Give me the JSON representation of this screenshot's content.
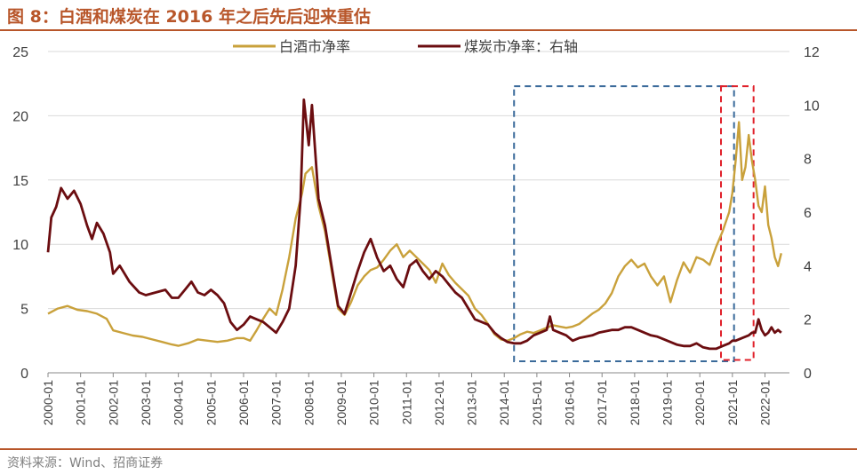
{
  "title": "图 8：白酒和煤炭在 2016 年之后先后迎来重估",
  "source": "资料来源：Wind、招商证券",
  "colors": {
    "baijiu": "#c9a13b",
    "coal": "#6b0d10",
    "blue_box": "#3a6a9a",
    "red_box": "#e0202a",
    "grid": "#d9d9d9",
    "accent": "#b8562a"
  },
  "chart_data": {
    "type": "line",
    "title": "",
    "legend_position": "top-center",
    "grid": true,
    "x_ticks": [
      "2000-01",
      "2001-01",
      "2002-01",
      "2003-01",
      "2004-01",
      "2005-01",
      "2006-01",
      "2007-01",
      "2008-01",
      "2009-01",
      "2010-01",
      "2011-01",
      "2012-01",
      "2013-01",
      "2014-01",
      "2015-01",
      "2016-01",
      "2017-01",
      "2018-01",
      "2019-01",
      "2020-01",
      "2021-01",
      "2022-01"
    ],
    "x_range": [
      2000.0,
      2022.75
    ],
    "y_left": {
      "min": 0,
      "max": 25,
      "ticks": [
        0,
        5,
        10,
        15,
        20,
        25
      ]
    },
    "y_right": {
      "min": 0,
      "max": 12,
      "ticks": [
        0,
        2,
        4,
        6,
        8,
        10,
        12
      ]
    },
    "series": [
      {
        "name": "白酒市净率",
        "axis": "left",
        "color": "#c9a13b",
        "x": [
          2000.0,
          2000.3,
          2000.6,
          2000.9,
          2001.2,
          2001.5,
          2001.8,
          2002.0,
          2002.3,
          2002.6,
          2002.9,
          2003.2,
          2003.5,
          2003.8,
          2004.0,
          2004.3,
          2004.6,
          2004.9,
          2005.2,
          2005.5,
          2005.8,
          2006.0,
          2006.2,
          2006.4,
          2006.6,
          2006.8,
          2007.0,
          2007.2,
          2007.4,
          2007.6,
          2007.8,
          2007.9,
          2008.1,
          2008.3,
          2008.5,
          2008.7,
          2008.9,
          2009.1,
          2009.3,
          2009.5,
          2009.7,
          2009.9,
          2010.1,
          2010.3,
          2010.5,
          2010.7,
          2010.9,
          2011.1,
          2011.3,
          2011.5,
          2011.7,
          2011.9,
          2012.1,
          2012.3,
          2012.5,
          2012.7,
          2012.9,
          2013.1,
          2013.3,
          2013.5,
          2013.7,
          2013.9,
          2014.1,
          2014.3,
          2014.5,
          2014.7,
          2014.9,
          2015.1,
          2015.3,
          2015.5,
          2015.7,
          2015.9,
          2016.1,
          2016.3,
          2016.5,
          2016.7,
          2016.9,
          2017.1,
          2017.3,
          2017.5,
          2017.7,
          2017.9,
          2018.1,
          2018.3,
          2018.5,
          2018.7,
          2018.9,
          2019.1,
          2019.3,
          2019.5,
          2019.7,
          2019.9,
          2020.1,
          2020.3,
          2020.5,
          2020.7,
          2020.9,
          2021.0,
          2021.1,
          2021.2,
          2021.3,
          2021.4,
          2021.5,
          2021.6,
          2021.7,
          2021.8,
          2021.9,
          2022.0,
          2022.1,
          2022.2,
          2022.3,
          2022.4,
          2022.5
        ],
        "values": [
          4.6,
          5.0,
          5.2,
          4.9,
          4.8,
          4.6,
          4.2,
          3.3,
          3.1,
          2.9,
          2.8,
          2.6,
          2.4,
          2.2,
          2.1,
          2.3,
          2.6,
          2.5,
          2.4,
          2.5,
          2.7,
          2.7,
          2.5,
          3.3,
          4.2,
          5.0,
          4.5,
          6.5,
          9.0,
          12.0,
          14.0,
          15.5,
          16.0,
          13.0,
          11.0,
          8.0,
          5.0,
          4.5,
          5.5,
          6.8,
          7.5,
          8.0,
          8.2,
          8.8,
          9.5,
          10.0,
          9.0,
          9.5,
          9.0,
          8.5,
          8.0,
          7.0,
          8.5,
          7.6,
          7.0,
          6.5,
          6.0,
          5.0,
          4.5,
          3.8,
          3.0,
          2.6,
          2.5,
          2.7,
          3.0,
          3.2,
          3.1,
          3.3,
          3.5,
          3.7,
          3.6,
          3.5,
          3.6,
          3.8,
          4.2,
          4.6,
          4.9,
          5.4,
          6.2,
          7.5,
          8.3,
          8.8,
          8.2,
          8.5,
          7.5,
          6.8,
          7.5,
          5.5,
          7.2,
          8.6,
          7.8,
          9.0,
          8.8,
          8.4,
          9.8,
          11.0,
          12.5,
          14.0,
          16.5,
          19.5,
          15.0,
          16.0,
          18.5,
          16.5,
          15.0,
          13.0,
          12.5,
          14.5,
          11.5,
          10.5,
          9.0,
          8.3,
          9.3
        ]
      },
      {
        "name": "煤炭市净率：右轴",
        "axis": "right",
        "color": "#6b0d10",
        "x": [
          2000.0,
          2000.1,
          2000.25,
          2000.4,
          2000.6,
          2000.8,
          2001.0,
          2001.2,
          2001.35,
          2001.5,
          2001.7,
          2001.9,
          2002.0,
          2002.2,
          2002.5,
          2002.8,
          2003.0,
          2003.3,
          2003.6,
          2003.8,
          2004.0,
          2004.2,
          2004.4,
          2004.6,
          2004.8,
          2005.0,
          2005.2,
          2005.4,
          2005.6,
          2005.8,
          2006.0,
          2006.2,
          2006.4,
          2006.6,
          2006.8,
          2007.0,
          2007.2,
          2007.4,
          2007.6,
          2007.75,
          2007.85,
          2008.0,
          2008.1,
          2008.3,
          2008.5,
          2008.7,
          2008.9,
          2009.1,
          2009.3,
          2009.5,
          2009.7,
          2009.9,
          2010.1,
          2010.3,
          2010.5,
          2010.7,
          2010.9,
          2011.1,
          2011.3,
          2011.5,
          2011.7,
          2011.9,
          2012.1,
          2012.3,
          2012.5,
          2012.7,
          2012.9,
          2013.1,
          2013.3,
          2013.5,
          2013.7,
          2013.9,
          2014.1,
          2014.3,
          2014.5,
          2014.7,
          2014.9,
          2015.1,
          2015.3,
          2015.4,
          2015.5,
          2015.7,
          2015.9,
          2016.1,
          2016.3,
          2016.5,
          2016.7,
          2016.9,
          2017.1,
          2017.3,
          2017.5,
          2017.7,
          2017.9,
          2018.1,
          2018.3,
          2018.5,
          2018.7,
          2018.9,
          2019.1,
          2019.3,
          2019.5,
          2019.7,
          2019.9,
          2020.1,
          2020.3,
          2020.5,
          2020.7,
          2020.9,
          2021.0,
          2021.1,
          2021.3,
          2021.5,
          2021.6,
          2021.7,
          2021.8,
          2021.9,
          2022.0,
          2022.1,
          2022.2,
          2022.3,
          2022.4,
          2022.5
        ],
        "values": [
          4.5,
          5.8,
          6.2,
          6.9,
          6.5,
          6.8,
          6.3,
          5.5,
          5.0,
          5.6,
          5.2,
          4.5,
          3.7,
          4.0,
          3.4,
          3.0,
          2.9,
          3.0,
          3.1,
          2.8,
          2.8,
          3.1,
          3.4,
          3.0,
          2.9,
          3.1,
          2.9,
          2.6,
          1.9,
          1.6,
          1.8,
          2.1,
          2.0,
          1.9,
          1.7,
          1.5,
          1.9,
          2.4,
          4.0,
          6.5,
          10.2,
          8.5,
          10.0,
          6.5,
          5.5,
          4.0,
          2.5,
          2.2,
          3.0,
          3.8,
          4.5,
          5.0,
          4.3,
          3.8,
          4.0,
          3.5,
          3.2,
          4.0,
          4.2,
          3.8,
          3.5,
          3.8,
          3.6,
          3.3,
          3.0,
          2.8,
          2.4,
          2.0,
          1.9,
          1.8,
          1.5,
          1.3,
          1.15,
          1.1,
          1.1,
          1.2,
          1.4,
          1.5,
          1.6,
          2.1,
          1.6,
          1.5,
          1.4,
          1.2,
          1.3,
          1.35,
          1.4,
          1.5,
          1.55,
          1.6,
          1.6,
          1.7,
          1.7,
          1.6,
          1.5,
          1.4,
          1.35,
          1.25,
          1.15,
          1.05,
          1.0,
          1.0,
          1.1,
          0.95,
          0.9,
          0.9,
          1.0,
          1.1,
          1.2,
          1.2,
          1.3,
          1.4,
          1.5,
          1.5,
          2.0,
          1.6,
          1.4,
          1.5,
          1.7,
          1.5,
          1.6,
          1.5
        ]
      }
    ],
    "annotations": [
      {
        "type": "box",
        "style": "dashed",
        "color": "#3a6a9a",
        "x": [
          2014.3,
          2021.05
        ],
        "y_left": [
          0.9,
          22.3
        ]
      },
      {
        "type": "box",
        "style": "dashed",
        "color": "#e0202a",
        "x": [
          2020.65,
          2021.65
        ],
        "y_left": [
          1.0,
          22.3
        ]
      }
    ]
  }
}
